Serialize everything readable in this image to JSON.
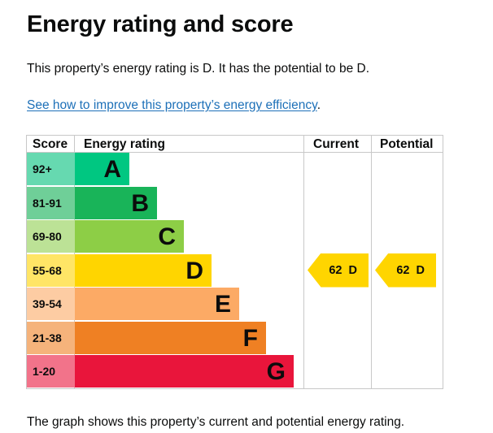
{
  "heading": "Energy rating and score",
  "intro": "This property’s energy rating is D. It has the potential to be D.",
  "link": {
    "text": "See how to improve this property’s energy efficiency",
    "suffix": "."
  },
  "chart": {
    "headers": {
      "score": "Score",
      "rating": "Energy rating",
      "current": "Current",
      "potential": "Potential"
    },
    "bands": [
      {
        "score": "92+",
        "letter": "A",
        "color": "#00c781",
        "score_bg": "#66d9b0",
        "width_fraction": 0.24
      },
      {
        "score": "81-91",
        "letter": "B",
        "color": "#19b459",
        "score_bg": "#6fcf98",
        "width_fraction": 0.36
      },
      {
        "score": "69-80",
        "letter": "C",
        "color": "#8dce46",
        "score_bg": "#bce296",
        "width_fraction": 0.48
      },
      {
        "score": "55-68",
        "letter": "D",
        "color": "#ffd500",
        "score_bg": "#ffe566",
        "width_fraction": 0.6
      },
      {
        "score": "39-54",
        "letter": "E",
        "color": "#fcaa65",
        "score_bg": "#fdcca3",
        "width_fraction": 0.72
      },
      {
        "score": "21-38",
        "letter": "F",
        "color": "#ef8023",
        "score_bg": "#f5b37b",
        "width_fraction": 0.84
      },
      {
        "score": "1-20",
        "letter": "G",
        "color": "#e9153b",
        "score_bg": "#f2738a",
        "width_fraction": 0.96
      }
    ],
    "current": {
      "label": "62  D",
      "band": "D",
      "color": "#ffd500"
    },
    "potential": {
      "label": "62  D",
      "band": "D",
      "color": "#ffd500"
    }
  },
  "footer": "The graph shows this property’s current and potential energy rating."
}
